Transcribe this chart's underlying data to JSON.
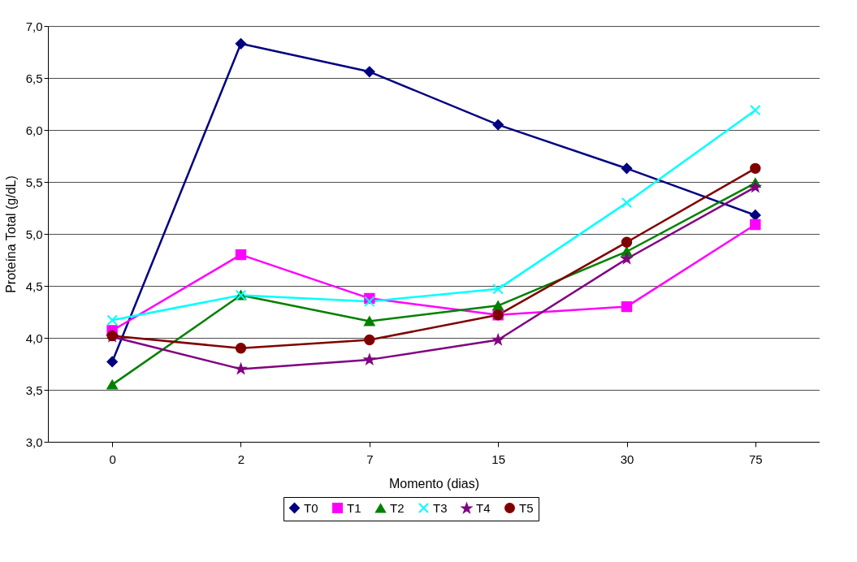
{
  "chart_data": {
    "type": "line",
    "xlabel": "Momento (dias)",
    "ylabel": "Proteína Total (g/dL)",
    "categories": [
      "0",
      "2",
      "7",
      "15",
      "30",
      "75"
    ],
    "ylim": [
      3,
      7
    ],
    "yticks": [
      {
        "value": 3,
        "label": "3,0"
      },
      {
        "value": 3.5,
        "label": "3,5"
      },
      {
        "value": 4,
        "label": "4,0"
      },
      {
        "value": 4.5,
        "label": "4,5"
      },
      {
        "value": 5,
        "label": "5,0"
      },
      {
        "value": 5.5,
        "label": "5,5"
      },
      {
        "value": 6,
        "label": "6,0"
      },
      {
        "value": 6.5,
        "label": "6,5"
      },
      {
        "value": 7,
        "label": "7,0"
      }
    ],
    "grid": "y",
    "legend": "bottom",
    "series": [
      {
        "name": "T0",
        "color": "#000080",
        "marker": "diamond",
        "values": [
          3.77,
          6.83,
          6.56,
          6.05,
          5.63,
          5.18
        ]
      },
      {
        "name": "T1",
        "color": "#ff00ff",
        "marker": "square",
        "values": [
          4.07,
          4.8,
          4.38,
          4.22,
          4.3,
          5.09
        ]
      },
      {
        "name": "T2",
        "color": "#008000",
        "marker": "triangle",
        "values": [
          3.55,
          4.41,
          4.16,
          4.31,
          4.83,
          5.49
        ]
      },
      {
        "name": "T3",
        "color": "#00ffff",
        "marker": "cross",
        "values": [
          4.17,
          4.41,
          4.35,
          4.47,
          5.3,
          6.19
        ]
      },
      {
        "name": "T4",
        "color": "#800080",
        "marker": "star",
        "values": [
          4.01,
          3.7,
          3.79,
          3.98,
          4.76,
          5.45
        ]
      },
      {
        "name": "T5",
        "color": "#800000",
        "marker": "circle",
        "values": [
          4.02,
          3.9,
          3.98,
          4.22,
          4.92,
          5.63
        ]
      }
    ]
  }
}
